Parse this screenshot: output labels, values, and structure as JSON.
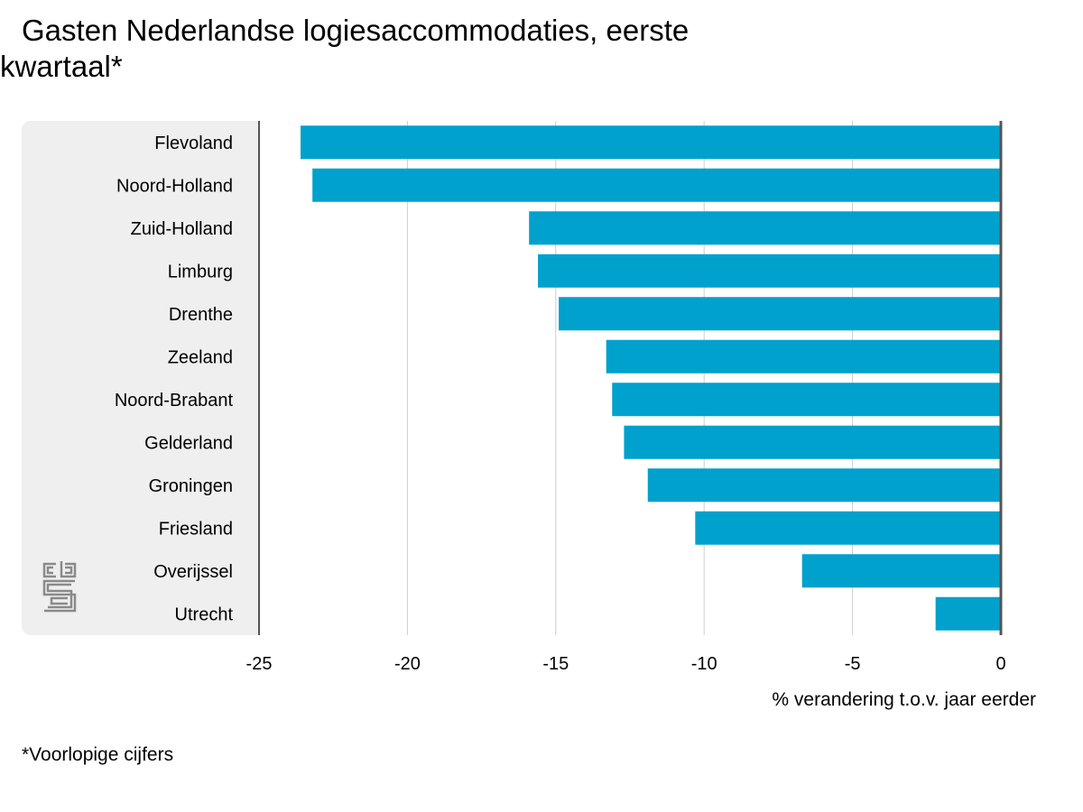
{
  "title_line1": "Gasten Nederlandse logiesaccommodaties, eerste",
  "title_line2": "kwartaal*",
  "footnote": "*Voorlopige cijfers",
  "logo_text": "cbs",
  "colors": {
    "bar": "#00a1cd",
    "panel": "#efefef",
    "grid": "#cccccc",
    "axis": "#555555"
  },
  "chart_data": {
    "type": "bar",
    "orientation": "horizontal",
    "categories": [
      "Flevoland",
      "Noord-Holland",
      "Zuid-Holland",
      "Limburg",
      "Drenthe",
      "Zeeland",
      "Noord-Brabant",
      "Gelderland",
      "Groningen",
      "Friesland",
      "Overijssel",
      "Utrecht"
    ],
    "values": [
      -23.6,
      -23.2,
      -15.9,
      -15.6,
      -14.9,
      -13.3,
      -13.1,
      -12.7,
      -11.9,
      -10.3,
      -6.7,
      -2.2
    ],
    "xlabel": "% verandering t.o.v. jaar eerder",
    "xlim": [
      -25,
      0
    ],
    "xticks": [
      -25,
      -20,
      -15,
      -10,
      -5,
      0
    ],
    "xtick_labels": [
      "-25",
      "-20",
      "-15",
      "-10",
      "-5",
      "0"
    ],
    "grid": true
  }
}
